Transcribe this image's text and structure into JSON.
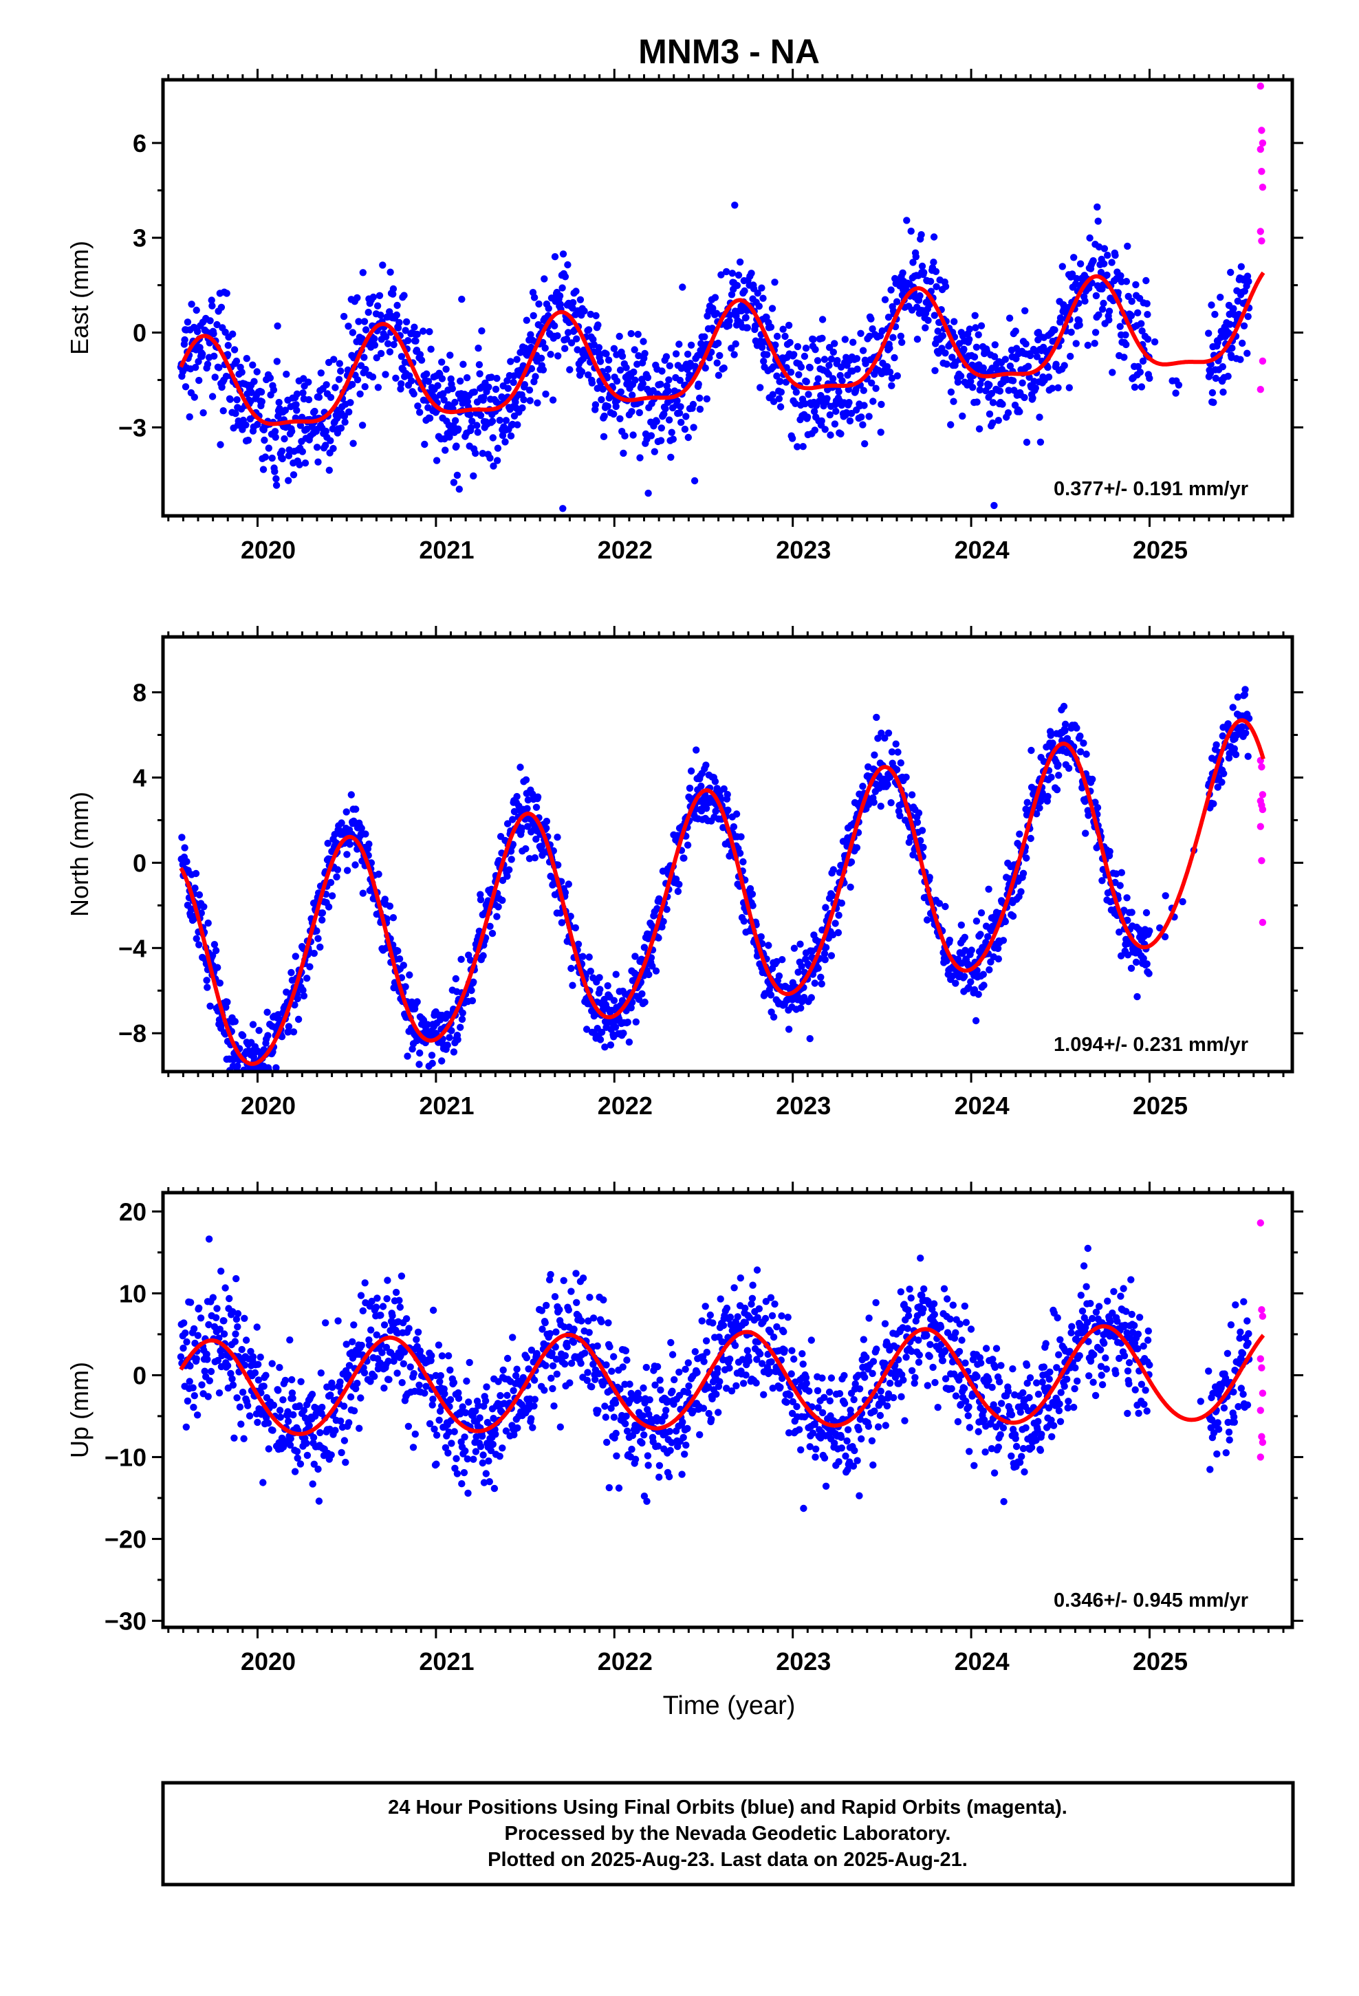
{
  "title": "MNM3 - NA",
  "xlabel": "Time (year)",
  "footer": {
    "line1": "24 Hour Positions Using Final Orbits (blue) and Rapid Orbits (magenta).",
    "line2": "Processed by the Nevada Geodetic Laboratory.",
    "line3": "Plotted on 2025-Aug-23. Last data on 2025-Aug-21."
  },
  "colors": {
    "final": "#0000ff",
    "rapid": "#ff00ff",
    "model": "#ff0000",
    "frame": "#000000"
  },
  "chart_data": [
    {
      "type": "scatter",
      "panel": "east",
      "ylabel": "East (mm)",
      "rate_text": "0.377+/- 0.191 mm/yr",
      "xlim": [
        2019.47,
        2025.8
      ],
      "ylim": [
        -5.8,
        8.0
      ],
      "xticks": [
        2020,
        2021,
        2022,
        2023,
        2024,
        2025
      ],
      "xtick_labels": [
        "2020",
        "2021",
        "2022",
        "2023",
        "2024",
        "2025"
      ],
      "yticks": [
        -3,
        0,
        3,
        6
      ],
      "ytick_labels": [
        "−3",
        "0",
        "3",
        "6"
      ],
      "data_start": 2019.57,
      "data_end": 2025.64,
      "rapid_start": 2025.56,
      "model": {
        "rate": 0.377,
        "offset": -0.95,
        "annual": {
          "amp": 1.45,
          "peak": 0.7
        },
        "semiannual": {
          "amp": 0.45,
          "peak": 0.2
        },
        "scatter_sd": 0.85
      },
      "rapid_values": [
        7.8,
        6.4,
        6.0,
        5.8,
        5.1,
        4.6,
        3.2,
        2.9,
        -0.9,
        -1.8
      ],
      "series": [
        {
          "name": "Final Orbits",
          "color": "#0000ff"
        },
        {
          "name": "Rapid Orbits",
          "color": "#ff00ff"
        },
        {
          "name": "Model",
          "color": "#ff0000"
        }
      ]
    },
    {
      "type": "scatter",
      "panel": "north",
      "ylabel": "North (mm)",
      "rate_text": "1.094+/- 0.231 mm/yr",
      "xlim": [
        2019.47,
        2025.8
      ],
      "ylim": [
        -9.8,
        10.6
      ],
      "xticks": [
        2020,
        2021,
        2022,
        2023,
        2024,
        2025
      ],
      "xtick_labels": [
        "2020",
        "2021",
        "2022",
        "2023",
        "2024",
        "2025"
      ],
      "yticks": [
        -8,
        -4,
        0,
        4,
        8
      ],
      "ytick_labels": [
        "−8",
        "−4",
        "0",
        "4",
        "8"
      ],
      "data_start": 2019.57,
      "data_end": 2025.64,
      "rapid_start": 2025.56,
      "model": {
        "rate": 1.094,
        "offset": -2.0,
        "annual": {
          "amp": 5.0,
          "peak": 0.5
        },
        "semiannual": {
          "amp": 0.45,
          "peak": 0.05
        },
        "scatter_sd": 0.8
      },
      "rapid_values": [
        4.8,
        4.5,
        3.2,
        2.9,
        2.7,
        2.5,
        1.7,
        0.1,
        -2.8
      ],
      "series": [
        {
          "name": "Final Orbits",
          "color": "#0000ff"
        },
        {
          "name": "Rapid Orbits",
          "color": "#ff00ff"
        },
        {
          "name": "Model",
          "color": "#ff0000"
        }
      ]
    },
    {
      "type": "scatter",
      "panel": "up",
      "ylabel": "Up (mm)",
      "rate_text": "0.346+/- 0.945 mm/yr",
      "xlim": [
        2019.47,
        2025.8
      ],
      "ylim": [
        -30.8,
        22.3
      ],
      "xticks": [
        2020,
        2021,
        2022,
        2023,
        2024,
        2025
      ],
      "xtick_labels": [
        "2020",
        "2021",
        "2022",
        "2023",
        "2024",
        "2025"
      ],
      "yticks": [
        -30,
        -20,
        -10,
        0,
        10,
        20
      ],
      "ytick_labels": [
        "−30",
        "−20",
        "−10",
        "0",
        "10",
        "20"
      ],
      "data_start": 2019.57,
      "data_end": 2025.64,
      "rapid_start": 2025.56,
      "model": {
        "rate": 0.346,
        "offset": -0.9,
        "annual": {
          "amp": 5.8,
          "peak": 0.74
        },
        "semiannual": {
          "amp": 0.3,
          "peak": 0.25
        },
        "scatter_sd": 3.6
      },
      "rapid_values": [
        18.6,
        8.0,
        7.2,
        2.0,
        0.9,
        -2.2,
        -4.3,
        -7.5,
        -8.2,
        -10.0
      ],
      "series": [
        {
          "name": "Final Orbits",
          "color": "#0000ff"
        },
        {
          "name": "Rapid Orbits",
          "color": "#ff00ff"
        },
        {
          "name": "Model",
          "color": "#ff0000"
        }
      ]
    }
  ]
}
